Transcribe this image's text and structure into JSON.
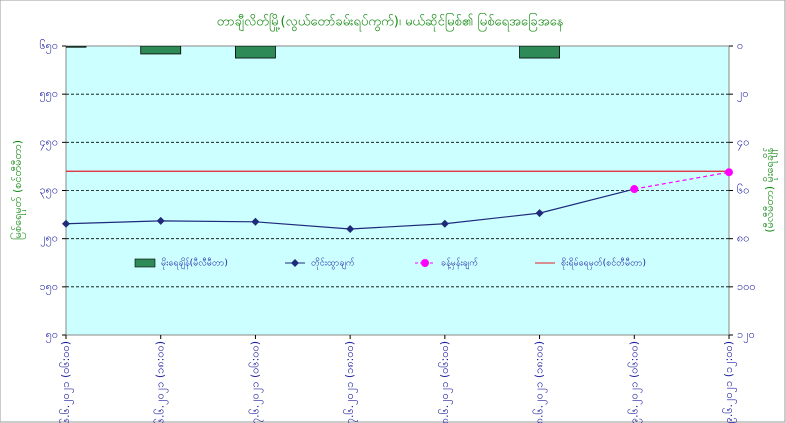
{
  "chart_data": {
    "type": "line",
    "title": "တာချီလိတ်မြို့(လွယ်တော်ခမ်းရပ်ကွက်)၊ မယ်ဆိုင်မြစ်၏ မြစ်ရေအခြေအနေ",
    "y_label": "မြစ်ရေမှတ် (စင်တီမီတာ)",
    "y2_label": "(မီလီမီတာ) မိုးရေချိန်",
    "categories": [
      "၁၆.၆.၂၀၂၁ (၀၆:၀၀)",
      "၁၆.၆.၂၀၂၁ (၁၈:၀၀)",
      "၁၇.၆.၂၀၂၁ (၀၆:၀၀)",
      "၁၇.၆.၂၀၂၁ (၁၈:၀၀)",
      "၁၈.၆.၂၀၂၁ (၀၆:၀၀)",
      "၁၈.၆.၂၀၂၁ (၁၈:၀၀)",
      "၁၉.၆.၂၀၂၁ (၀၆:၀၀)",
      "၁၉.၆.၂၀၂၁ (၁၂:၀၀)"
    ],
    "ylim": [
      50,
      650
    ],
    "yticks": [
      {
        "value": 50,
        "label": "၅၀"
      },
      {
        "value": 150,
        "label": "၁၅၀"
      },
      {
        "value": 250,
        "label": "၂၅၀"
      },
      {
        "value": 350,
        "label": "၃၅၀"
      },
      {
        "value": 450,
        "label": "၄၅၀"
      },
      {
        "value": 550,
        "label": "၅၅၀"
      },
      {
        "value": 650,
        "label": "၆၅၀"
      }
    ],
    "y2lim": [
      0,
      120
    ],
    "y2_reversed": true,
    "y2ticks": [
      {
        "value": 0,
        "label": "၀"
      },
      {
        "value": 20,
        "label": "၂၀"
      },
      {
        "value": 40,
        "label": "၄၀"
      },
      {
        "value": 60,
        "label": "၆၀"
      },
      {
        "value": 80,
        "label": "၈၀"
      },
      {
        "value": 100,
        "label": "၁၀၀"
      },
      {
        "value": 120,
        "label": "၁၂၀"
      }
    ],
    "grid": true,
    "series": [
      {
        "name": "မိုးရေချိန်(မီလီမီတာ)",
        "type": "bar",
        "axis": "y2",
        "color": "#2e8b57",
        "values": [
          0.5,
          3.3,
          5,
          0,
          0,
          5,
          0,
          0
        ]
      },
      {
        "name": "တိုင်းထွာချက်",
        "type": "line",
        "color": "#1f2a7a",
        "marker": "diamond",
        "values": [
          281,
          287,
          285,
          270,
          281,
          303,
          353,
          null
        ]
      },
      {
        "name": "ခန့်မှန်းချက်",
        "type": "line",
        "color": "#ff00ff",
        "marker": "circle",
        "dashed": true,
        "values": [
          null,
          null,
          null,
          null,
          null,
          null,
          353,
          388
        ]
      },
      {
        "name": "စိုးရိမ်ရေမှတ်(စင်တီမီတာ)",
        "type": "line",
        "color": "#e0202a",
        "marker": "none",
        "values": [
          390,
          390,
          390,
          390,
          390,
          390,
          390,
          390
        ]
      }
    ]
  }
}
